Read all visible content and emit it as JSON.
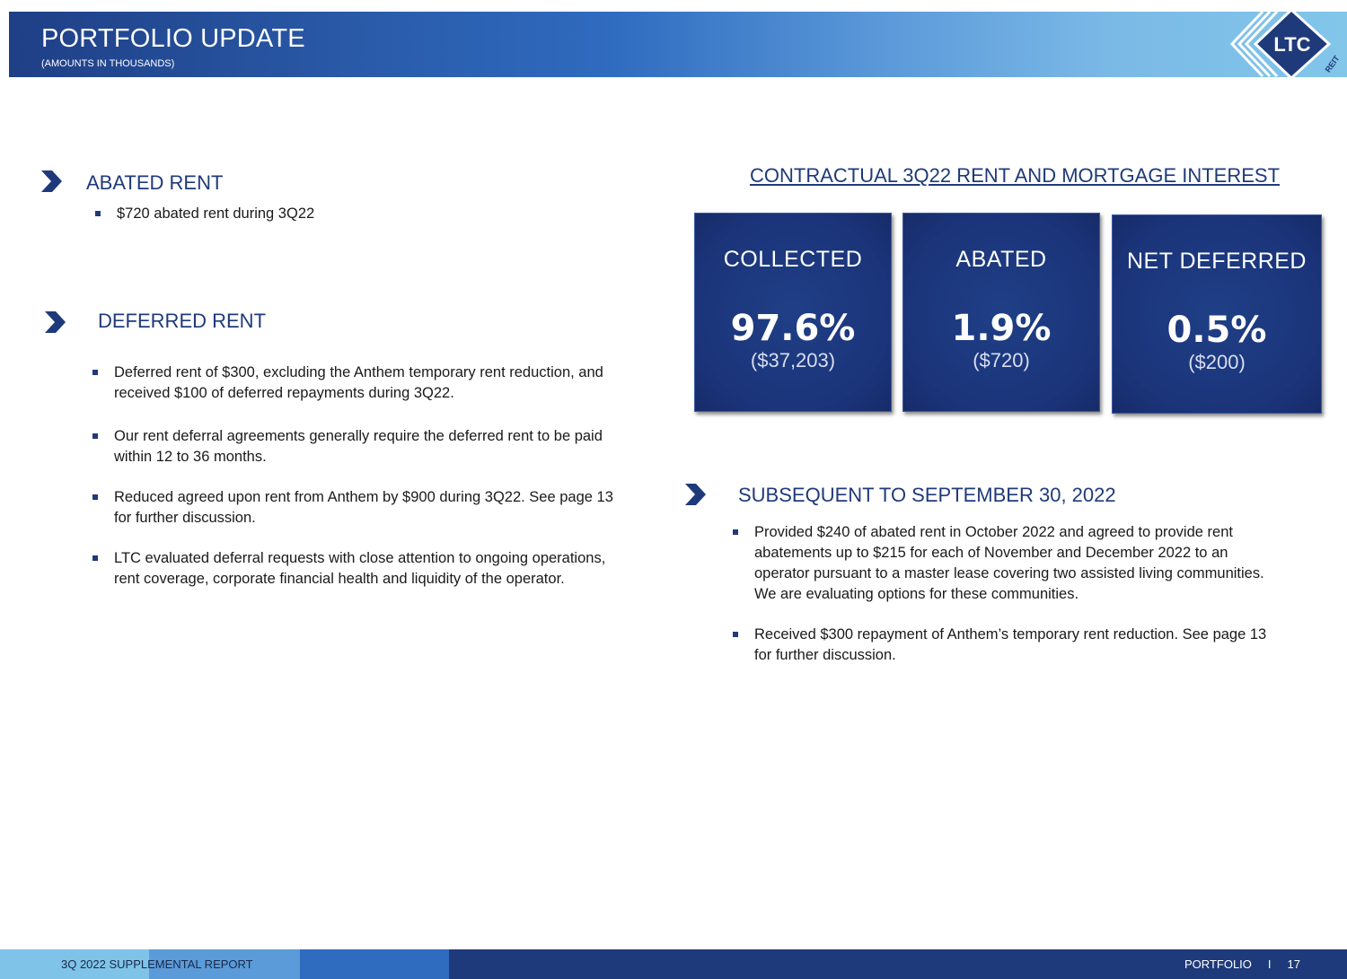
{
  "header": {
    "title": "PORTFOLIO UPDATE",
    "subtitle": "(AMOUNTS IN THOUSANDS)",
    "logo_text": "LTC",
    "logo_subtext": "REIT"
  },
  "abated_rent": {
    "title": "ABATED RENT",
    "bullets": [
      "$720 abated rent during 3Q22"
    ]
  },
  "deferred_rent": {
    "title": "DEFERRED RENT",
    "bullets": [
      "Deferred rent of $300, excluding the Anthem temporary rent reduction, and received $100 of deferred repayments during 3Q22.",
      "Our rent deferral agreements generally require the deferred rent to be paid within 12 to 36 months.",
      "Reduced agreed upon rent from Anthem by $900 during 3Q22. See page 13 for further discussion.",
      "LTC evaluated deferral requests with close attention to ongoing operations, rent coverage, corporate financial health and liquidity of the operator."
    ]
  },
  "contractual": {
    "title": "CONTRACTUAL 3Q22 RENT AND MORTGAGE INTEREST",
    "cards": [
      {
        "label": "COLLECTED",
        "pct": "97.6%",
        "amount": "($37,203)"
      },
      {
        "label": "ABATED",
        "pct": "1.9%",
        "amount": "($720)"
      },
      {
        "label": "NET DEFERRED",
        "pct": "0.5%",
        "amount": "($200)"
      }
    ]
  },
  "subsequent": {
    "title": "SUBSEQUENT TO SEPTEMBER 30, 2022",
    "bullets": [
      "Provided $240 of abated rent in October 2022 and agreed to provide rent abatements up to $215 for each of November and December 2022 to an operator pursuant to a master lease covering two assisted living communities. We are evaluating options for these communities.",
      "Received $300 repayment of Anthem’s temporary rent reduction. See page 13 for further discussion."
    ]
  },
  "footer": {
    "left": "3Q 2022 SUPPLEMENTAL REPORT",
    "section": "PORTFOLIO",
    "separator": "I",
    "page": "17"
  },
  "colors": {
    "navy": "#1f3a7a",
    "card": "#1b347a"
  }
}
